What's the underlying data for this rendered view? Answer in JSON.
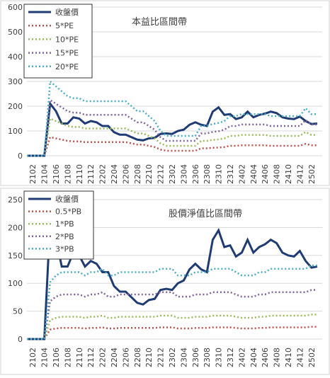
{
  "chart_data": [
    {
      "type": "line",
      "title": "本益比區間帶",
      "categories": [
        null,
        "2102",
        null,
        "2104",
        null,
        "2106",
        null,
        "2108",
        null,
        "2110",
        null,
        "2112",
        null,
        "2202",
        null,
        "2204",
        null,
        "2206",
        null,
        "2208",
        null,
        "2210",
        null,
        "2212",
        null,
        "2302",
        null,
        "2304",
        null,
        "2306",
        null,
        "2308",
        null,
        "2310",
        null,
        "2312",
        null,
        "2402",
        null,
        "2404",
        null,
        "2406",
        null,
        "2408",
        null,
        "2410",
        null,
        "2412",
        null,
        "2502",
        null
      ],
      "series": [
        {
          "name": "收盤價",
          "color": "#1f3b73",
          "style": "solid",
          "values": [
            0,
            0,
            0,
            0,
            210,
            180,
            130,
            130,
            155,
            150,
            130,
            140,
            135,
            120,
            120,
            95,
            85,
            85,
            75,
            65,
            62,
            70,
            72,
            88,
            90,
            88,
            100,
            105,
            125,
            135,
            125,
            120,
            178,
            195,
            165,
            168,
            148,
            155,
            178,
            155,
            165,
            170,
            178,
            172,
            155,
            150,
            148,
            158,
            140,
            128,
            130
          ]
        },
        {
          "name": "5*PE",
          "color": "#c0504d",
          "style": "dotted",
          "values": [
            0,
            0,
            0,
            0,
            75,
            70,
            65,
            60,
            58,
            58,
            55,
            55,
            55,
            55,
            55,
            55,
            55,
            55,
            50,
            45,
            45,
            40,
            35,
            25,
            20,
            20,
            20,
            20,
            20,
            20,
            30,
            30,
            32,
            33,
            35,
            40,
            40,
            42,
            42,
            42,
            42,
            42,
            40,
            40,
            40,
            40,
            40,
            40,
            48,
            42,
            42
          ]
        },
        {
          "name": "10*PE",
          "color": "#9bbb59",
          "style": "dotted",
          "values": [
            0,
            0,
            0,
            0,
            150,
            140,
            130,
            120,
            116,
            116,
            110,
            110,
            110,
            110,
            110,
            110,
            110,
            110,
            100,
            90,
            90,
            80,
            70,
            50,
            40,
            40,
            40,
            40,
            40,
            40,
            60,
            60,
            64,
            66,
            70,
            80,
            80,
            84,
            84,
            84,
            84,
            84,
            80,
            80,
            80,
            80,
            80,
            80,
            96,
            84,
            84
          ]
        },
        {
          "name": "15*PE",
          "color": "#8064a2",
          "style": "dotted",
          "values": [
            0,
            0,
            0,
            0,
            225,
            210,
            195,
            180,
            174,
            174,
            165,
            165,
            165,
            165,
            165,
            165,
            165,
            165,
            150,
            135,
            135,
            120,
            105,
            75,
            60,
            60,
            60,
            60,
            60,
            60,
            90,
            90,
            96,
            99,
            105,
            120,
            120,
            126,
            126,
            126,
            126,
            126,
            120,
            120,
            120,
            120,
            120,
            120,
            144,
            126,
            126
          ]
        },
        {
          "name": "20*PE",
          "color": "#4bacc6",
          "style": "dotted",
          "values": [
            0,
            0,
            0,
            0,
            300,
            280,
            260,
            240,
            232,
            232,
            220,
            220,
            220,
            220,
            220,
            220,
            220,
            220,
            200,
            180,
            180,
            160,
            140,
            100,
            80,
            80,
            80,
            80,
            80,
            80,
            120,
            120,
            128,
            132,
            140,
            160,
            160,
            168,
            168,
            168,
            168,
            168,
            160,
            160,
            160,
            160,
            160,
            160,
            192,
            168,
            168
          ]
        }
      ],
      "ylim": [
        0,
        600
      ],
      "yticks": [
        0,
        100,
        200,
        300,
        400,
        500,
        600
      ],
      "legend": "upper left"
    },
    {
      "type": "line",
      "title": "股價淨值比區間帶",
      "categories": [
        null,
        "2102",
        null,
        "2104",
        null,
        "2106",
        null,
        "2108",
        null,
        "2110",
        null,
        "2112",
        null,
        "2202",
        null,
        "2204",
        null,
        "2206",
        null,
        "2208",
        null,
        "2210",
        null,
        "2212",
        null,
        "2302",
        null,
        "2304",
        null,
        "2306",
        null,
        "2308",
        null,
        "2310",
        null,
        "2312",
        null,
        "2402",
        null,
        "2404",
        null,
        "2406",
        null,
        "2408",
        null,
        "2410",
        null,
        "2412",
        null,
        "2502",
        null
      ],
      "series": [
        {
          "name": "收盤價",
          "color": "#1f3b73",
          "style": "solid",
          "values": [
            0,
            0,
            0,
            0,
            210,
            180,
            130,
            130,
            155,
            150,
            130,
            140,
            135,
            120,
            120,
            95,
            85,
            85,
            75,
            65,
            62,
            70,
            72,
            88,
            90,
            88,
            100,
            105,
            125,
            135,
            125,
            120,
            178,
            195,
            165,
            168,
            148,
            155,
            178,
            155,
            165,
            170,
            178,
            172,
            155,
            150,
            148,
            158,
            140,
            128,
            130
          ]
        },
        {
          "name": "0.5*PB",
          "color": "#c0504d",
          "style": "dotted",
          "values": [
            0,
            0,
            0,
            0,
            17,
            19,
            20,
            20,
            20,
            20,
            19,
            20,
            20,
            21,
            19,
            19,
            20,
            20,
            20,
            20,
            20,
            20,
            20,
            21,
            21,
            21,
            19,
            19,
            19,
            20,
            20,
            20,
            21,
            21,
            21,
            21,
            20,
            19,
            19,
            19,
            20,
            20,
            21,
            21,
            21,
            21,
            21,
            21,
            21,
            22,
            22
          ]
        },
        {
          "name": "1*PB",
          "color": "#9bbb59",
          "style": "dotted",
          "values": [
            0,
            0,
            0,
            0,
            34,
            38,
            40,
            40,
            40,
            40,
            38,
            40,
            40,
            42,
            38,
            38,
            40,
            40,
            40,
            40,
            40,
            40,
            40,
            42,
            42,
            42,
            38,
            38,
            38,
            40,
            40,
            40,
            42,
            42,
            42,
            42,
            40,
            38,
            38,
            38,
            40,
            40,
            42,
            42,
            42,
            42,
            42,
            42,
            42,
            44,
            44
          ]
        },
        {
          "name": "2*PB",
          "color": "#8064a2",
          "style": "dotted",
          "values": [
            0,
            0,
            0,
            0,
            68,
            76,
            80,
            80,
            80,
            80,
            76,
            80,
            80,
            84,
            76,
            76,
            80,
            80,
            80,
            80,
            80,
            80,
            80,
            84,
            84,
            84,
            76,
            76,
            76,
            80,
            80,
            80,
            84,
            84,
            84,
            84,
            80,
            76,
            76,
            76,
            80,
            80,
            84,
            84,
            84,
            84,
            84,
            84,
            84,
            88,
            88
          ]
        },
        {
          "name": "3*PB",
          "color": "#4bacc6",
          "style": "dotted",
          "values": [
            0,
            0,
            0,
            0,
            102,
            114,
            120,
            120,
            120,
            120,
            114,
            120,
            120,
            126,
            114,
            114,
            120,
            120,
            120,
            120,
            120,
            120,
            120,
            126,
            126,
            126,
            114,
            114,
            114,
            120,
            120,
            120,
            126,
            126,
            126,
            126,
            120,
            114,
            114,
            114,
            120,
            120,
            126,
            126,
            126,
            126,
            126,
            126,
            126,
            132,
            132
          ]
        }
      ],
      "ylim": [
        0,
        250
      ],
      "yticks": [
        0,
        50,
        100,
        150,
        200,
        250
      ],
      "legend": "upper left"
    }
  ]
}
